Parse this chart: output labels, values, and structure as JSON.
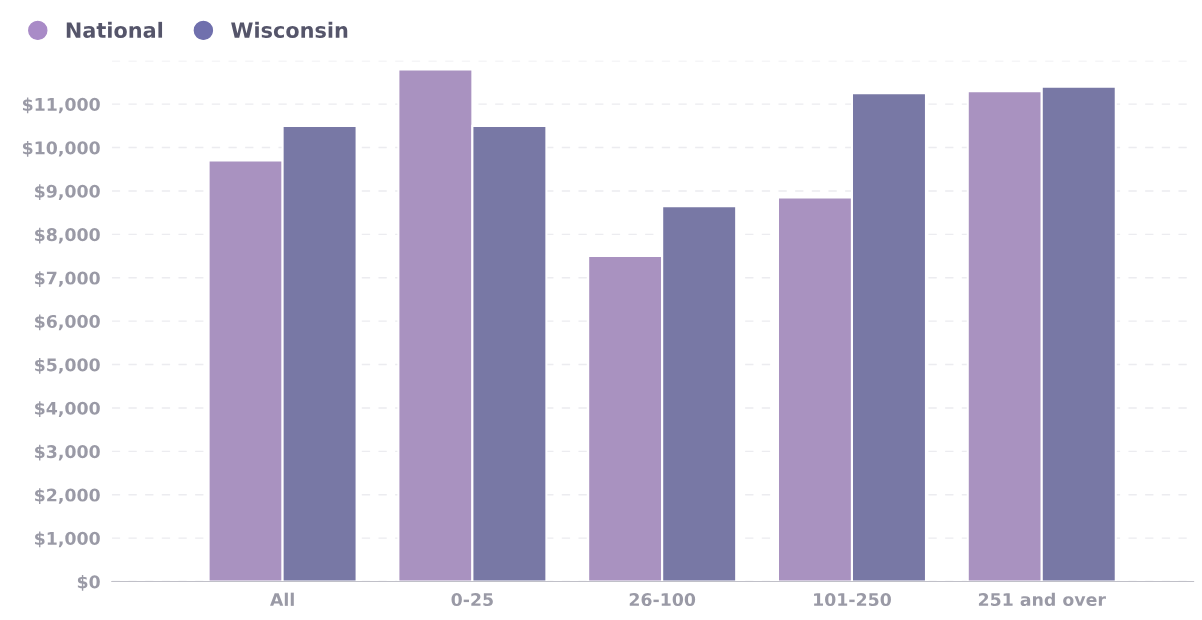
{
  "chart_data": {
    "type": "bar",
    "categories": [
      "All",
      "0-25",
      "26-100",
      "101-250",
      "251 and over"
    ],
    "series": [
      {
        "name": "National",
        "color": "#a98bc7",
        "values": [
          9700,
          11800,
          7500,
          8850,
          11300
        ]
      },
      {
        "name": "Wisconsin",
        "color": "#7070ad",
        "values": [
          10500,
          10500,
          8650,
          11250,
          11400
        ]
      }
    ],
    "ylim": [
      0,
      12000
    ],
    "yticks": [
      {
        "value": 0,
        "label": "$0"
      },
      {
        "value": 1000,
        "label": "$1,000"
      },
      {
        "value": 2000,
        "label": "$2,000"
      },
      {
        "value": 3000,
        "label": "$3,000"
      },
      {
        "value": 4000,
        "label": "$4,000"
      },
      {
        "value": 5000,
        "label": "$5,000"
      },
      {
        "value": 6000,
        "label": "$6,000"
      },
      {
        "value": 7000,
        "label": "$7,000"
      },
      {
        "value": 8000,
        "label": "$8,000"
      },
      {
        "value": 9000,
        "label": "$9,000"
      },
      {
        "value": 10000,
        "label": "$10,000"
      },
      {
        "value": 11000,
        "label": "$11,000"
      },
      {
        "value": 12000,
        "label": null
      }
    ],
    "grid": "y",
    "legend": "top left"
  }
}
